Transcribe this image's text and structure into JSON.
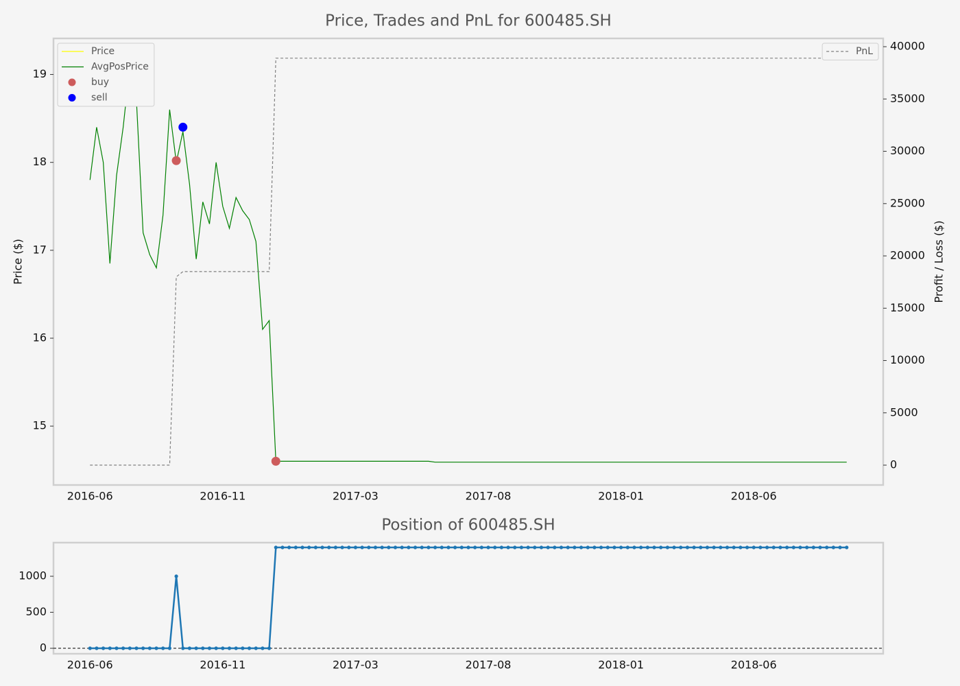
{
  "chart_data": [
    {
      "type": "line",
      "title": "Price, Trades and PnL for 600485.SH",
      "ylabel": "Price ($)",
      "y2label": "Profit / Loss ($)",
      "categories": [
        "2016-06",
        null,
        null,
        null,
        null,
        null,
        null,
        null,
        null,
        null,
        null,
        null,
        null,
        null,
        null,
        null,
        null,
        null,
        null,
        null,
        "2016-11",
        null,
        null,
        null,
        null,
        null,
        null,
        null,
        null,
        null,
        null,
        null,
        null,
        null,
        null,
        null,
        null,
        null,
        null,
        null,
        "2017-03",
        null,
        null,
        null,
        null,
        null,
        null,
        null,
        null,
        null,
        null,
        null,
        null,
        null,
        null,
        null,
        null,
        null,
        null,
        null,
        "2017-08",
        null,
        null,
        null,
        null,
        null,
        null,
        null,
        null,
        null,
        null,
        null,
        null,
        null,
        null,
        null,
        null,
        null,
        null,
        null,
        "2018-01",
        null,
        null,
        null,
        null,
        null,
        null,
        null,
        null,
        null,
        null,
        null,
        null,
        null,
        null,
        null,
        null,
        null,
        null,
        null,
        "2018-06",
        null,
        null,
        null,
        null,
        null,
        null,
        null,
        null,
        null,
        null,
        null,
        null,
        null,
        null
      ],
      "ylim": [
        14.33,
        19.41
      ],
      "yticks": [
        15,
        16,
        17,
        18,
        19
      ],
      "y2lim": [
        -1900,
        40790
      ],
      "y2ticks": [
        0,
        5000,
        10000,
        15000,
        20000,
        25000,
        30000,
        35000,
        40000
      ],
      "legend": "upper left",
      "legend2": "upper right",
      "series": [
        {
          "name": "Price",
          "color": "#ffff00",
          "values": [
            null,
            null,
            null,
            null,
            null,
            null,
            null,
            null,
            null,
            null,
            null,
            null,
            null,
            null,
            null,
            null,
            null,
            null,
            null,
            null,
            null,
            null,
            null,
            null,
            null,
            null,
            null,
            null,
            null,
            null,
            null,
            null,
            null,
            null,
            null,
            null,
            null,
            null,
            null,
            null,
            null,
            null,
            null,
            null,
            null,
            null,
            null,
            null,
            null,
            null,
            null,
            null,
            null,
            null,
            null,
            null,
            null,
            null,
            null,
            null,
            null,
            null,
            null,
            null,
            null,
            null,
            null,
            null,
            null,
            null,
            null,
            null,
            null,
            null,
            null,
            null,
            null,
            null,
            null,
            null,
            null,
            null,
            null,
            null,
            null,
            null,
            null,
            null,
            null,
            null,
            null,
            null,
            null,
            null,
            null,
            null,
            null,
            null,
            null,
            null,
            null,
            null,
            null,
            null,
            null,
            null,
            null,
            null,
            null,
            null,
            null,
            null,
            null,
            null,
            null
          ]
        },
        {
          "name": "AvgPosPrice",
          "color": "#008000",
          "values": [
            17.8,
            18.4,
            18.0,
            16.85,
            17.85,
            18.4,
            19.1,
            18.7,
            17.2,
            16.95,
            16.8,
            17.4,
            18.6,
            18.0,
            18.35,
            17.75,
            16.9,
            17.55,
            17.3,
            18.0,
            17.5,
            17.25,
            17.6,
            17.45,
            17.35,
            17.1,
            16.1,
            16.2,
            14.6,
            14.6,
            14.6,
            14.6,
            14.6,
            14.6,
            14.6,
            14.6,
            14.6,
            14.6,
            14.6,
            14.6,
            14.6,
            14.6,
            14.6,
            14.6,
            14.6,
            14.6,
            14.6,
            14.6,
            14.6,
            14.6,
            14.6,
            14.6,
            14.59,
            14.59,
            14.59,
            14.59,
            14.59,
            14.59,
            14.59,
            14.59,
            14.59,
            14.59,
            14.59,
            14.59,
            14.59,
            14.59,
            14.59,
            14.59,
            14.59,
            14.59,
            14.59,
            14.59,
            14.59,
            14.59,
            14.59,
            14.59,
            14.59,
            14.59,
            14.59,
            14.59,
            14.59,
            14.59,
            14.59,
            14.59,
            14.59,
            14.59,
            14.59,
            14.59,
            14.59,
            14.59,
            14.59,
            14.59,
            14.59,
            14.59,
            14.59,
            14.59,
            14.59,
            14.59,
            14.59,
            14.59,
            14.59,
            14.59,
            14.59,
            14.59,
            14.59,
            14.59,
            14.59,
            14.59,
            14.59,
            14.59,
            14.59,
            14.59,
            14.59,
            14.59,
            14.59
          ]
        },
        {
          "name": "buy",
          "type": "scatter",
          "color": "#cd5c5c",
          "values": [
            null,
            null,
            null,
            null,
            null,
            null,
            null,
            null,
            null,
            null,
            null,
            null,
            null,
            18.02,
            null,
            null,
            null,
            null,
            null,
            null,
            null,
            null,
            null,
            null,
            null,
            null,
            null,
            null,
            14.6,
            null,
            null,
            null,
            null,
            null,
            null,
            null,
            null,
            null,
            null,
            null,
            null,
            null,
            null,
            null,
            null,
            null,
            null,
            null,
            null,
            null,
            null,
            null,
            null,
            null,
            null,
            null,
            null,
            null,
            null,
            null,
            null,
            null,
            null,
            null,
            null,
            null,
            null,
            null,
            null,
            null,
            null,
            null,
            null,
            null,
            null,
            null,
            null,
            null,
            null,
            null,
            null,
            null,
            null,
            null,
            null,
            null,
            null,
            null,
            null,
            null,
            null,
            null,
            null,
            null,
            null,
            null,
            null,
            null,
            null,
            null,
            null,
            null,
            null,
            null,
            null,
            null,
            null,
            null,
            null,
            null,
            null,
            null,
            null,
            null,
            null
          ]
        },
        {
          "name": "sell",
          "type": "scatter",
          "color": "#0000ff",
          "values": [
            null,
            null,
            null,
            null,
            null,
            null,
            null,
            null,
            null,
            null,
            null,
            null,
            null,
            null,
            18.4,
            null,
            null,
            null,
            null,
            null,
            null,
            null,
            null,
            null,
            null,
            null,
            null,
            null,
            null,
            null,
            null,
            null,
            null,
            null,
            null,
            null,
            null,
            null,
            null,
            null,
            null,
            null,
            null,
            null,
            null,
            null,
            null,
            null,
            null,
            null,
            null,
            null,
            null,
            null,
            null,
            null,
            null,
            null,
            null,
            null,
            null,
            null,
            null,
            null,
            null,
            null,
            null,
            null,
            null,
            null,
            null,
            null,
            null,
            null,
            null,
            null,
            null,
            null,
            null,
            null,
            null,
            null,
            null,
            null,
            null,
            null,
            null,
            null,
            null,
            null,
            null,
            null,
            null,
            null,
            null,
            null,
            null,
            null,
            null,
            null,
            null,
            null,
            null,
            null,
            null,
            null,
            null,
            null,
            null,
            null,
            null,
            null,
            null,
            null,
            null
          ]
        },
        {
          "name": "PnL",
          "color": "#808080",
          "dashed": true,
          "axis": "y2",
          "values": [
            0,
            0,
            0,
            0,
            0,
            0,
            0,
            0,
            0,
            0,
            0,
            0,
            0,
            18000,
            18500,
            18500,
            18500,
            18500,
            18500,
            18500,
            18500,
            18500,
            18500,
            18500,
            18500,
            18500,
            18500,
            18500,
            38900,
            38900,
            38900,
            38900,
            38900,
            38900,
            38900,
            38900,
            38900,
            38900,
            38900,
            38900,
            38900,
            38900,
            38900,
            38900,
            38900,
            38900,
            38900,
            38900,
            38900,
            38900,
            38900,
            38900,
            38900,
            38900,
            38900,
            38900,
            38900,
            38900,
            38900,
            38900,
            38900,
            38900,
            38900,
            38900,
            38900,
            38900,
            38900,
            38900,
            38900,
            38900,
            38900,
            38900,
            38900,
            38900,
            38900,
            38900,
            38900,
            38900,
            38900,
            38900,
            38900,
            38900,
            38900,
            38900,
            38900,
            38900,
            38900,
            38900,
            38900,
            38900,
            38900,
            38900,
            38900,
            38900,
            38900,
            38900,
            38900,
            38900,
            38900,
            38900,
            38900,
            38900,
            38900,
            38900,
            38900,
            38900,
            38900,
            38900,
            38900,
            38900,
            38900,
            38900,
            38900,
            38900,
            38900
          ]
        }
      ]
    },
    {
      "type": "line",
      "title": "Position of 600485.SH",
      "categories": [
        "2016-06",
        null,
        null,
        null,
        null,
        null,
        null,
        null,
        null,
        null,
        null,
        null,
        null,
        null,
        null,
        null,
        null,
        null,
        null,
        null,
        "2016-11",
        null,
        null,
        null,
        null,
        null,
        null,
        null,
        null,
        null,
        null,
        null,
        null,
        null,
        null,
        null,
        null,
        null,
        null,
        null,
        "2017-03",
        null,
        null,
        null,
        null,
        null,
        null,
        null,
        null,
        null,
        null,
        null,
        null,
        null,
        null,
        null,
        null,
        null,
        null,
        null,
        "2017-08",
        null,
        null,
        null,
        null,
        null,
        null,
        null,
        null,
        null,
        null,
        null,
        null,
        null,
        null,
        null,
        null,
        null,
        null,
        null,
        "2018-01",
        null,
        null,
        null,
        null,
        null,
        null,
        null,
        null,
        null,
        null,
        null,
        null,
        null,
        null,
        null,
        null,
        null,
        null,
        null,
        "2018-06",
        null,
        null,
        null,
        null,
        null,
        null,
        null,
        null,
        null,
        null,
        null,
        null,
        null,
        null
      ],
      "ylim": [
        -76,
        1467
      ],
      "yticks": [
        0,
        500,
        1000
      ],
      "hline": 0,
      "series": [
        {
          "color": "#1f77b4",
          "markers": true,
          "values": [
            0,
            0,
            0,
            0,
            0,
            0,
            0,
            0,
            0,
            0,
            0,
            0,
            0,
            1000,
            0,
            0,
            0,
            0,
            0,
            0,
            0,
            0,
            0,
            0,
            0,
            0,
            0,
            0,
            1400,
            1400,
            1400,
            1400,
            1400,
            1400,
            1400,
            1400,
            1400,
            1400,
            1400,
            1400,
            1400,
            1400,
            1400,
            1400,
            1400,
            1400,
            1400,
            1400,
            1400,
            1400,
            1400,
            1400,
            1400,
            1400,
            1400,
            1400,
            1400,
            1400,
            1400,
            1400,
            1400,
            1400,
            1400,
            1400,
            1400,
            1400,
            1400,
            1400,
            1400,
            1400,
            1400,
            1400,
            1400,
            1400,
            1400,
            1400,
            1400,
            1400,
            1400,
            1400,
            1400,
            1400,
            1400,
            1400,
            1400,
            1400,
            1400,
            1400,
            1400,
            1400,
            1400,
            1400,
            1400,
            1400,
            1400,
            1400,
            1400,
            1400,
            1400,
            1400,
            1400,
            1400,
            1400,
            1400,
            1400,
            1400,
            1400,
            1400,
            1400,
            1400,
            1400,
            1400,
            1400,
            1400,
            1400
          ]
        }
      ]
    }
  ]
}
